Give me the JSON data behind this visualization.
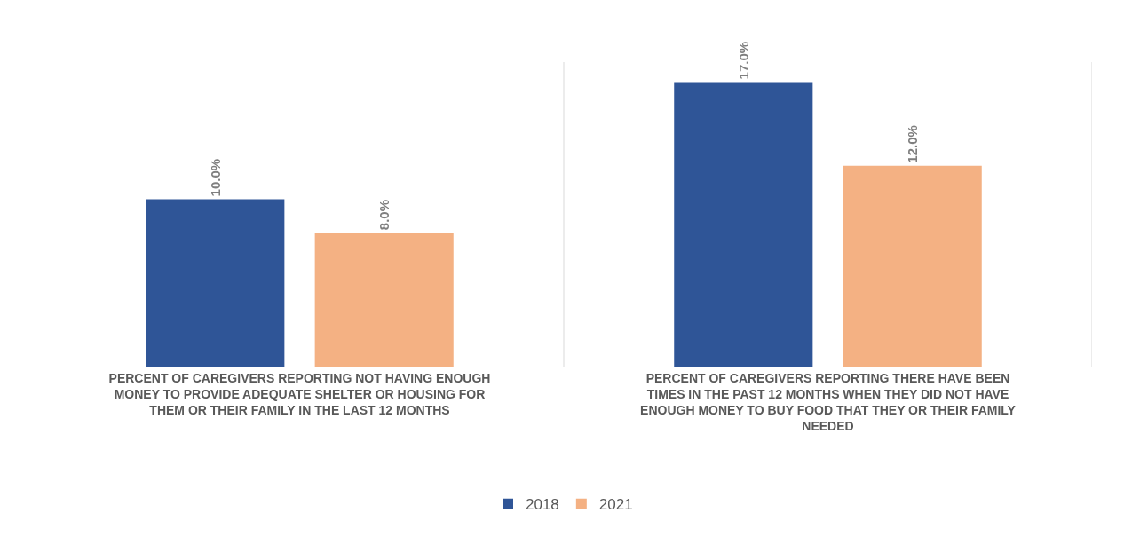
{
  "chart_data": {
    "type": "bar",
    "categories": [
      "PERCENT OF CAREGIVERS REPORTING NOT HAVING ENOUGH MONEY TO PROVIDE ADEQUATE SHELTER OR HOUSING FOR THEM OR THEIR FAMILY IN THE LAST 12 MONTHS",
      "PERCENT OF CAREGIVERS REPORTING THERE HAVE BEEN TIMES IN THE PAST 12 MONTHS WHEN THEY DID NOT HAVE ENOUGH MONEY TO BUY FOOD THAT THEY OR THEIR FAMILY NEEDED"
    ],
    "series": [
      {
        "name": "2018",
        "color": "#2f5597",
        "values": [
          10.0,
          17.0
        ],
        "value_labels": [
          "10.0%",
          "17.0%"
        ]
      },
      {
        "name": "2021",
        "color": "#f4b183",
        "values": [
          8.0,
          12.0
        ],
        "value_labels": [
          "8.0%",
          "12.0%"
        ]
      }
    ],
    "grid": "x",
    "legend": "bottom"
  }
}
